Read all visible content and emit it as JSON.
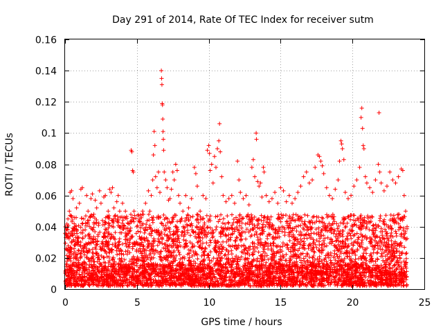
{
  "chart_data": {
    "type": "scatter",
    "title": "Day 291 of 2014, Rate Of TEC Index for receiver sutm",
    "xlabel": "GPS time / hours",
    "ylabel": "ROTI / TECUs",
    "xlim": [
      0,
      25
    ],
    "ylim": [
      0,
      0.16
    ],
    "xticks": [
      0,
      5,
      10,
      15,
      20,
      25
    ],
    "xtick_labels": [
      "0",
      "5",
      "10",
      "15",
      "20",
      "25"
    ],
    "yticks": [
      0,
      0.02,
      0.04,
      0.06,
      0.08,
      0.1,
      0.12,
      0.14,
      0.16
    ],
    "ytick_labels": [
      "0",
      "0.02",
      "0.04",
      "0.06",
      "0.08",
      "0.1",
      "0.12",
      "0.14",
      "0.16"
    ],
    "grid": true,
    "marker": "plus",
    "color": "#ff0000",
    "series": [
      {
        "name": "ROTI",
        "points": [
          [
            0.05,
            0.012
          ],
          [
            0.1,
            0.035
          ],
          [
            0.15,
            0.025
          ],
          [
            0.2,
            0.045
          ],
          [
            0.3,
            0.05
          ],
          [
            0.35,
            0.062
          ],
          [
            0.45,
            0.063
          ],
          [
            0.55,
            0.058
          ],
          [
            0.6,
            0.02
          ],
          [
            0.7,
            0.04
          ],
          [
            0.8,
            0.052
          ],
          [
            0.9,
            0.03
          ],
          [
            1.0,
            0.055
          ],
          [
            1.1,
            0.064
          ],
          [
            1.2,
            0.065
          ],
          [
            1.3,
            0.045
          ],
          [
            1.4,
            0.038
          ],
          [
            1.5,
            0.06
          ],
          [
            1.6,
            0.05
          ],
          [
            1.7,
            0.025
          ],
          [
            1.8,
            0.058
          ],
          [
            1.9,
            0.061
          ],
          [
            2.0,
            0.048
          ],
          [
            2.1,
            0.057
          ],
          [
            2.2,
            0.052
          ],
          [
            2.3,
            0.035
          ],
          [
            2.4,
            0.063
          ],
          [
            2.5,
            0.055
          ],
          [
            2.6,
            0.044
          ],
          [
            2.7,
            0.059
          ],
          [
            2.8,
            0.06
          ],
          [
            2.9,
            0.03
          ],
          [
            3.0,
            0.05
          ],
          [
            3.1,
            0.064
          ],
          [
            3.2,
            0.062
          ],
          [
            3.3,
            0.065
          ],
          [
            3.4,
            0.052
          ],
          [
            3.5,
            0.045
          ],
          [
            3.6,
            0.056
          ],
          [
            3.7,
            0.06
          ],
          [
            3.8,
            0.05
          ],
          [
            3.9,
            0.04
          ],
          [
            4.0,
            0.055
          ],
          [
            4.1,
            0.046
          ],
          [
            4.2,
            0.05
          ],
          [
            4.3,
            0.035
          ],
          [
            4.4,
            0.042
          ],
          [
            4.5,
            0.03
          ],
          [
            4.6,
            0.089
          ],
          [
            4.65,
            0.088
          ],
          [
            4.7,
            0.076
          ],
          [
            4.75,
            0.075
          ],
          [
            4.8,
            0.05
          ],
          [
            5.0,
            0.04
          ],
          [
            5.2,
            0.045
          ],
          [
            5.4,
            0.05
          ],
          [
            5.6,
            0.055
          ],
          [
            5.8,
            0.063
          ],
          [
            5.9,
            0.05
          ],
          [
            6.0,
            0.06
          ],
          [
            6.1,
            0.07
          ],
          [
            6.15,
            0.086
          ],
          [
            6.2,
            0.101
          ],
          [
            6.25,
            0.092
          ],
          [
            6.3,
            0.072
          ],
          [
            6.4,
            0.065
          ],
          [
            6.5,
            0.075
          ],
          [
            6.6,
            0.062
          ],
          [
            6.7,
            0.14
          ],
          [
            6.72,
            0.135
          ],
          [
            6.74,
            0.131
          ],
          [
            6.76,
            0.119
          ],
          [
            6.78,
            0.118
          ],
          [
            6.8,
            0.109
          ],
          [
            6.82,
            0.101
          ],
          [
            6.84,
            0.096
          ],
          [
            6.86,
            0.089
          ],
          [
            6.9,
            0.075
          ],
          [
            7.0,
            0.07
          ],
          [
            7.1,
            0.065
          ],
          [
            7.2,
            0.057
          ],
          [
            7.3,
            0.058
          ],
          [
            7.4,
            0.064
          ],
          [
            7.5,
            0.075
          ],
          [
            7.6,
            0.07
          ],
          [
            7.7,
            0.08
          ],
          [
            7.8,
            0.076
          ],
          [
            7.9,
            0.06
          ],
          [
            8.0,
            0.055
          ],
          [
            8.2,
            0.05
          ],
          [
            8.4,
            0.06
          ],
          [
            8.6,
            0.052
          ],
          [
            8.8,
            0.058
          ],
          [
            9.0,
            0.078
          ],
          [
            9.1,
            0.074
          ],
          [
            9.2,
            0.066
          ],
          [
            9.4,
            0.05
          ],
          [
            9.6,
            0.06
          ],
          [
            9.8,
            0.058
          ],
          [
            9.9,
            0.089
          ],
          [
            10.0,
            0.092
          ],
          [
            10.05,
            0.087
          ],
          [
            10.1,
            0.076
          ],
          [
            10.2,
            0.08
          ],
          [
            10.3,
            0.068
          ],
          [
            10.4,
            0.085
          ],
          [
            10.5,
            0.078
          ],
          [
            10.6,
            0.09
          ],
          [
            10.7,
            0.095
          ],
          [
            10.75,
            0.106
          ],
          [
            10.8,
            0.088
          ],
          [
            10.9,
            0.072
          ],
          [
            11.0,
            0.06
          ],
          [
            11.2,
            0.056
          ],
          [
            11.4,
            0.058
          ],
          [
            11.6,
            0.06
          ],
          [
            11.8,
            0.055
          ],
          [
            12.0,
            0.082
          ],
          [
            12.1,
            0.07
          ],
          [
            12.2,
            0.062
          ],
          [
            12.4,
            0.058
          ],
          [
            12.6,
            0.06
          ],
          [
            12.8,
            0.054
          ],
          [
            13.0,
            0.078
          ],
          [
            13.1,
            0.083
          ],
          [
            13.2,
            0.072
          ],
          [
            13.3,
            0.1
          ],
          [
            13.32,
            0.096
          ],
          [
            13.4,
            0.069
          ],
          [
            13.5,
            0.066
          ],
          [
            13.6,
            0.068
          ],
          [
            13.7,
            0.059
          ],
          [
            13.8,
            0.078
          ],
          [
            13.85,
            0.075
          ],
          [
            14.0,
            0.06
          ],
          [
            14.2,
            0.056
          ],
          [
            14.4,
            0.058
          ],
          [
            14.6,
            0.062
          ],
          [
            14.8,
            0.055
          ],
          [
            15.0,
            0.065
          ],
          [
            15.2,
            0.063
          ],
          [
            15.4,
            0.056
          ],
          [
            15.6,
            0.06
          ],
          [
            15.8,
            0.055
          ],
          [
            16.0,
            0.058
          ],
          [
            16.2,
            0.062
          ],
          [
            16.4,
            0.066
          ],
          [
            16.6,
            0.072
          ],
          [
            16.8,
            0.075
          ],
          [
            17.0,
            0.068
          ],
          [
            17.2,
            0.07
          ],
          [
            17.4,
            0.078
          ],
          [
            17.6,
            0.086
          ],
          [
            17.7,
            0.085
          ],
          [
            17.8,
            0.082
          ],
          [
            17.9,
            0.079
          ],
          [
            18.0,
            0.074
          ],
          [
            18.2,
            0.065
          ],
          [
            18.4,
            0.06
          ],
          [
            18.6,
            0.058
          ],
          [
            18.8,
            0.064
          ],
          [
            19.0,
            0.07
          ],
          [
            19.1,
            0.082
          ],
          [
            19.2,
            0.095
          ],
          [
            19.25,
            0.093
          ],
          [
            19.3,
            0.09
          ],
          [
            19.4,
            0.083
          ],
          [
            19.5,
            0.062
          ],
          [
            19.7,
            0.058
          ],
          [
            19.9,
            0.06
          ],
          [
            20.1,
            0.066
          ],
          [
            20.3,
            0.07
          ],
          [
            20.5,
            0.078
          ],
          [
            20.6,
            0.11
          ],
          [
            20.65,
            0.116
          ],
          [
            20.7,
            0.103
          ],
          [
            20.75,
            0.092
          ],
          [
            20.8,
            0.09
          ],
          [
            20.9,
            0.072
          ],
          [
            21.0,
            0.068
          ],
          [
            21.2,
            0.065
          ],
          [
            21.4,
            0.062
          ],
          [
            21.6,
            0.07
          ],
          [
            21.8,
            0.08
          ],
          [
            21.85,
            0.113
          ],
          [
            21.9,
            0.075
          ],
          [
            22.0,
            0.068
          ],
          [
            22.2,
            0.063
          ],
          [
            22.4,
            0.066
          ],
          [
            22.6,
            0.075
          ],
          [
            22.8,
            0.07
          ],
          [
            23.0,
            0.068
          ],
          [
            23.2,
            0.072
          ],
          [
            23.4,
            0.077
          ],
          [
            23.5,
            0.076
          ],
          [
            23.6,
            0.06
          ],
          [
            23.7,
            0.05
          ],
          [
            23.8,
            0.04
          ]
        ],
        "dense_band": {
          "x_start": 0,
          "x_end": 23.8,
          "y_min": 0.002,
          "y_max": 0.048
        }
      }
    ]
  }
}
